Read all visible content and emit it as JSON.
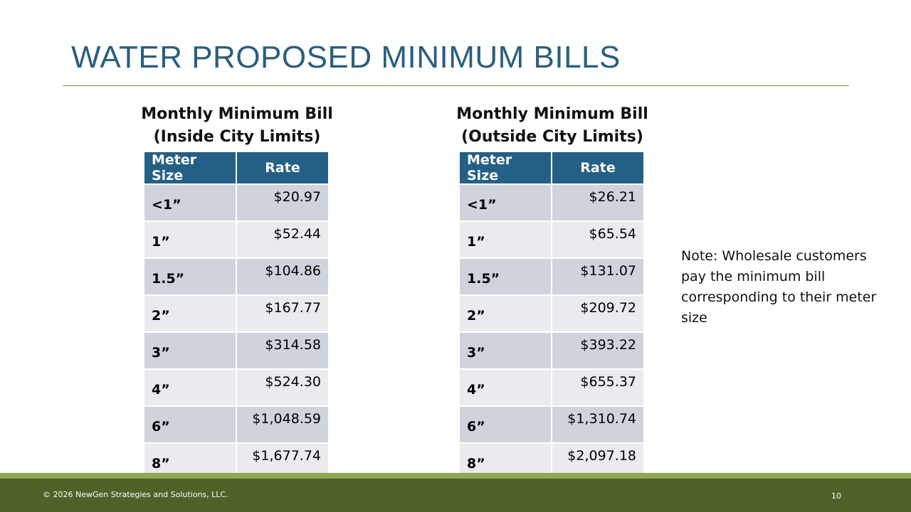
{
  "title": "WATER PROPOSED MINIMUM BILLS",
  "tables": [
    {
      "caption": [
        "Monthly Minimum Bill",
        "(Inside City Limits)"
      ],
      "header": [
        "Meter Size",
        "Rate"
      ],
      "rows": [
        [
          "<1”",
          "$20.97"
        ],
        [
          "1”",
          "$52.44"
        ],
        [
          "1.5”",
          "$104.86"
        ],
        [
          "2”",
          "$167.77"
        ],
        [
          "3”",
          "$314.58"
        ],
        [
          "4”",
          "$524.30"
        ],
        [
          "6”",
          "$1,048.59"
        ],
        [
          "8”",
          "$1,677.74"
        ]
      ]
    },
    {
      "caption": [
        "Monthly Minimum Bill",
        "(Outside City Limits)"
      ],
      "header": [
        "Meter Size",
        "Rate"
      ],
      "rows": [
        [
          "<1”",
          "$26.21"
        ],
        [
          "1”",
          "$65.54"
        ],
        [
          "1.5”",
          "$131.07"
        ],
        [
          "2”",
          "$209.72"
        ],
        [
          "3”",
          "$393.22"
        ],
        [
          "4”",
          "$655.37"
        ],
        [
          "6”",
          "$1,310.74"
        ],
        [
          "8”",
          "$2,097.18"
        ]
      ]
    }
  ],
  "note": "Note: Wholesale customers pay the minimum bill corresponding to their meter size",
  "footer": {
    "copyright": "© 2026 NewGen  Strategies and Solutions, LLC.",
    "page": "10"
  }
}
